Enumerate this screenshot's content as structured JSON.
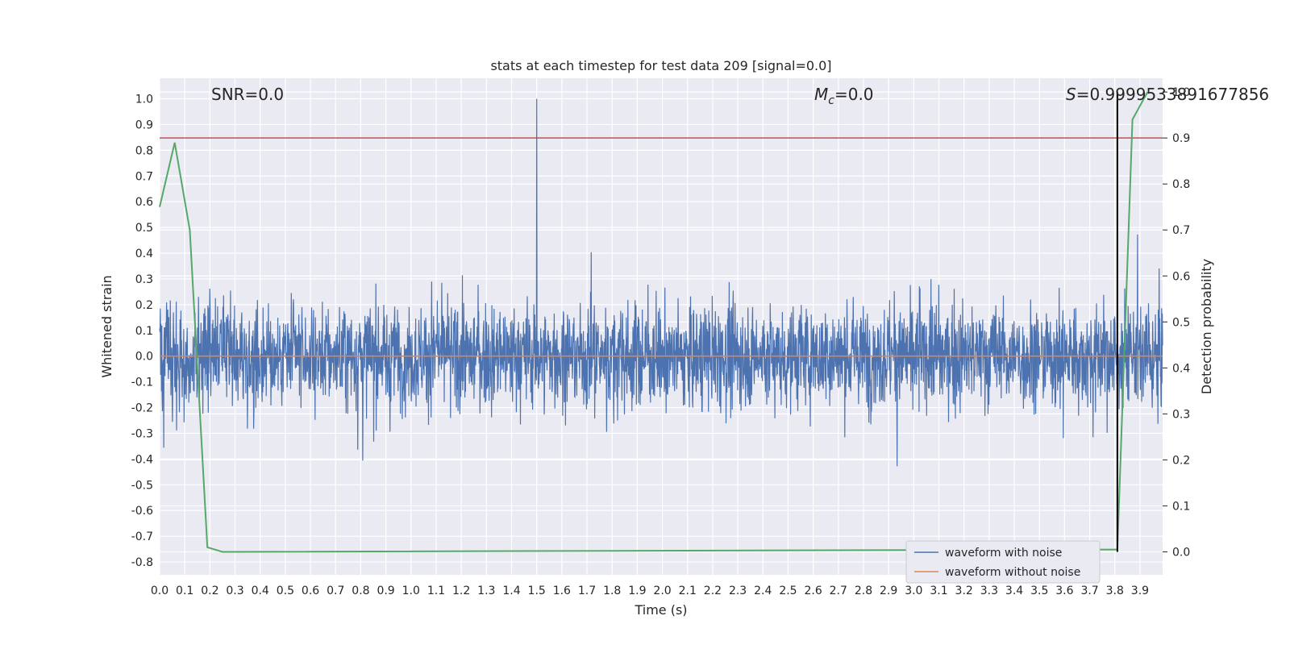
{
  "chart_data": {
    "type": "line",
    "title": "stats at each timestep for test data 209 [signal=0.0]",
    "xlabel": "Time (s)",
    "ylabel": "Whitened strain",
    "y2label": "Detection probability",
    "xlim": [
      0.0,
      3.99
    ],
    "ylim": [
      -0.85,
      1.08
    ],
    "y2lim": [
      -0.05,
      1.03
    ],
    "x_ticks": [
      "0.0",
      "0.1",
      "0.2",
      "0.3",
      "0.4",
      "0.5",
      "0.6",
      "0.7",
      "0.8",
      "0.9",
      "1.0",
      "1.1",
      "1.2",
      "1.3",
      "1.4",
      "1.5",
      "1.6",
      "1.7",
      "1.8",
      "1.9",
      "2.0",
      "2.1",
      "2.2",
      "2.3",
      "2.4",
      "2.5",
      "2.6",
      "2.7",
      "2.8",
      "2.9",
      "3.0",
      "3.1",
      "3.2",
      "3.3",
      "3.4",
      "3.5",
      "3.6",
      "3.7",
      "3.8",
      "3.9"
    ],
    "y_ticks": [
      "1.0",
      "0.9",
      "0.8",
      "0.7",
      "0.6",
      "0.5",
      "0.4",
      "0.3",
      "0.2",
      "0.1",
      "0.0",
      "-0.1",
      "-0.2",
      "-0.3",
      "-0.4",
      "-0.5",
      "-0.6",
      "-0.7",
      "-0.8"
    ],
    "y2_ticks": [
      "1.0",
      "0.9",
      "0.8",
      "0.7",
      "0.6",
      "0.5",
      "0.4",
      "0.3",
      "0.2",
      "0.1",
      "0.0"
    ],
    "grid": true,
    "legend_position": "bottom-right",
    "annotations": {
      "snr": "SNR=0.0",
      "mc": "M",
      "mc_sub": "c",
      "mc_value": "=0.0",
      "s": "S",
      "s_value": "=0.9999533891677856"
    },
    "series": [
      {
        "name": "waveform with noise",
        "color": "#4c72b0",
        "style": "noise",
        "y_range_typical": [
          -0.45,
          0.45
        ],
        "peak": {
          "x": 1.5,
          "y": 1.0
        }
      },
      {
        "name": "waveform without noise",
        "color": "#dd8452",
        "x": [
          0.0,
          3.99
        ],
        "y": [
          0.0,
          0.0
        ]
      }
    ],
    "detection_probability": {
      "color": "#55a868",
      "x": [
        0.0,
        0.06,
        0.12,
        0.19,
        0.25,
        3.8,
        3.81,
        3.87,
        3.93
      ],
      "y": [
        0.75,
        0.89,
        0.7,
        0.01,
        0.0,
        0.005,
        0.005,
        0.94,
        1.0
      ]
    },
    "threshold": {
      "color": "#c44e52",
      "y2": 0.9
    },
    "marker_line": {
      "color": "#000000",
      "x": 3.81,
      "y2": [
        0.0,
        1.0
      ]
    }
  }
}
